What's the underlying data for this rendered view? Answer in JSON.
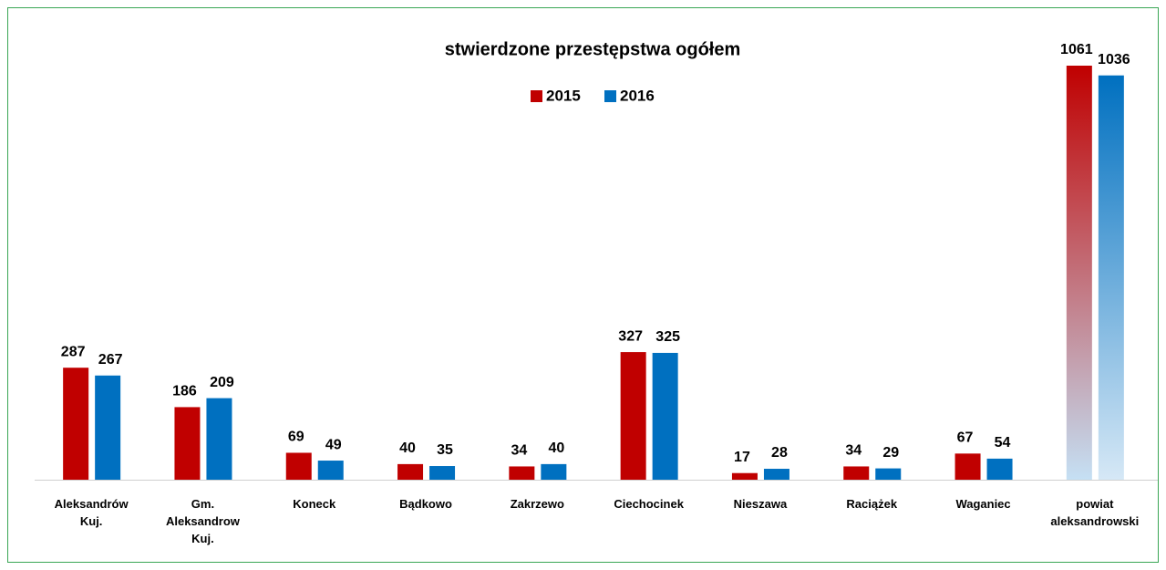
{
  "chart_data": {
    "type": "bar",
    "title": "stwierdzone przestępstwa ogółem",
    "categories": [
      "Aleksandrów Kuj.",
      "Gm. Aleksandrow Kuj.",
      "Koneck",
      "Bądkowo",
      "Zakrzewo",
      "Ciechocinek",
      "Nieszawa",
      "Raciążek",
      "Waganiec",
      "powiat aleksandrowski"
    ],
    "series": [
      {
        "name": "2015",
        "color": "#c00000",
        "values": [
          287,
          186,
          69,
          40,
          34,
          327,
          17,
          34,
          67,
          1061
        ]
      },
      {
        "name": "2016",
        "color": "#0070c0",
        "values": [
          267,
          209,
          49,
          35,
          40,
          325,
          28,
          29,
          54,
          1036
        ]
      }
    ],
    "legend": "top"
  }
}
